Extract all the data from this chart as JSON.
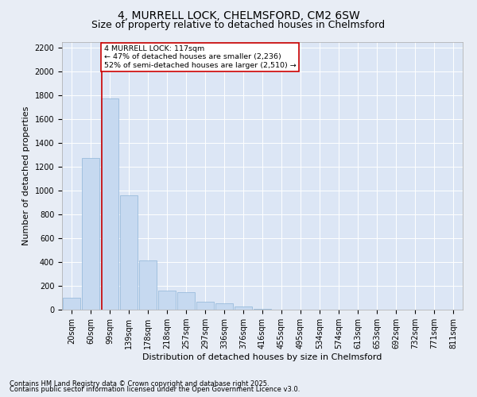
{
  "title1": "4, MURRELL LOCK, CHELMSFORD, CM2 6SW",
  "title2": "Size of property relative to detached houses in Chelmsford",
  "xlabel": "Distribution of detached houses by size in Chelmsford",
  "ylabel": "Number of detached properties",
  "categories": [
    "20sqm",
    "60sqm",
    "99sqm",
    "139sqm",
    "178sqm",
    "218sqm",
    "257sqm",
    "297sqm",
    "336sqm",
    "376sqm",
    "416sqm",
    "455sqm",
    "495sqm",
    "534sqm",
    "574sqm",
    "613sqm",
    "653sqm",
    "692sqm",
    "732sqm",
    "771sqm",
    "811sqm"
  ],
  "values": [
    100,
    1275,
    1775,
    960,
    415,
    160,
    150,
    70,
    55,
    25,
    10,
    3,
    2,
    1,
    1,
    0,
    0,
    0,
    0,
    0,
    0
  ],
  "bar_color": "#c6d9f0",
  "bar_edge_color": "#8eb4d8",
  "vline_color": "#cc0000",
  "annotation_text": "4 MURRELL LOCK: 117sqm\n← 47% of detached houses are smaller (2,236)\n52% of semi-detached houses are larger (2,510) →",
  "annotation_box_color": "#ffffff",
  "annotation_box_edge": "#cc0000",
  "ylim": [
    0,
    2250
  ],
  "yticks": [
    0,
    200,
    400,
    600,
    800,
    1000,
    1200,
    1400,
    1600,
    1800,
    2000,
    2200
  ],
  "bg_color": "#e8edf5",
  "plot_bg_color": "#dce6f5",
  "footer1": "Contains HM Land Registry data © Crown copyright and database right 2025.",
  "footer2": "Contains public sector information licensed under the Open Government Licence v3.0.",
  "title1_fontsize": 10,
  "title2_fontsize": 9,
  "tick_fontsize": 7,
  "label_fontsize": 8,
  "footer_fontsize": 6
}
